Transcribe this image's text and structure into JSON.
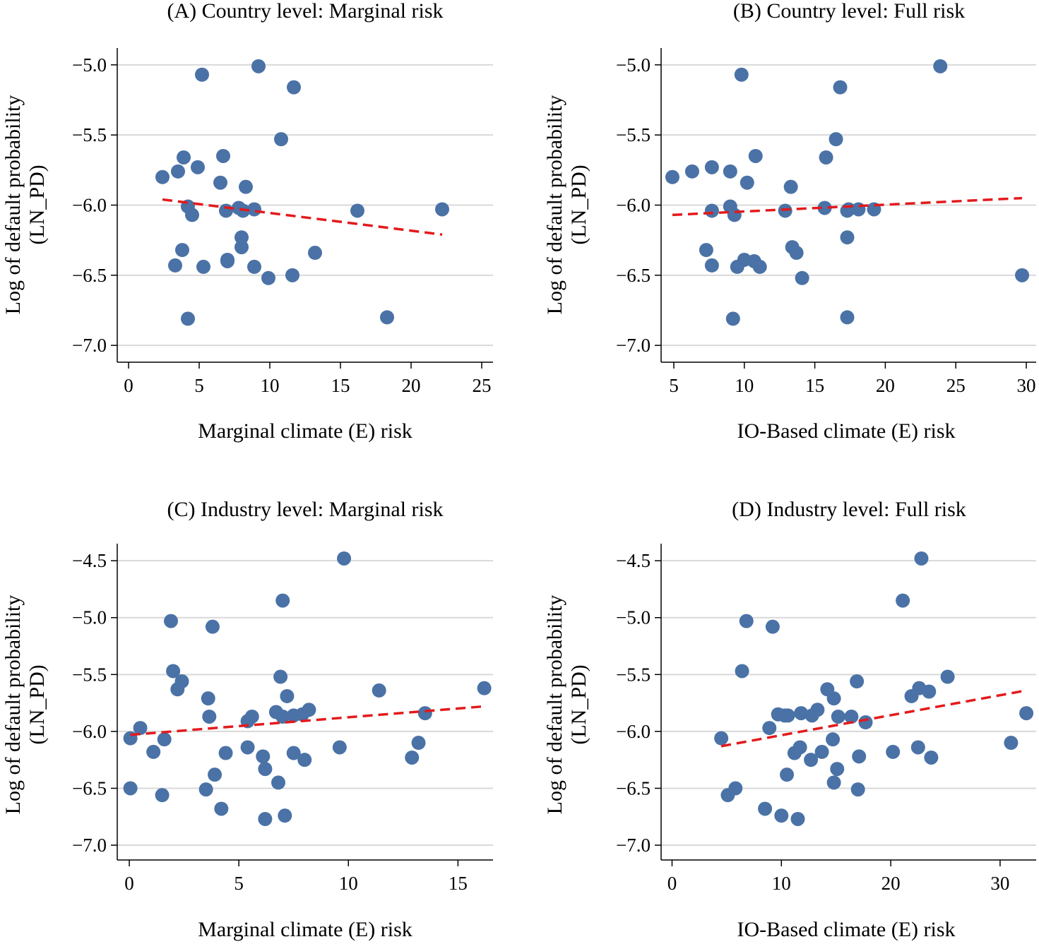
{
  "chart_data": [
    {
      "type": "scatter",
      "title": "(A) Country level: Marginal risk",
      "xlabel": "Marginal climate (E) risk",
      "ylabel": [
        "Log of default probability",
        "(LN_PD)"
      ],
      "xlim": [
        -0.8,
        25.8
      ],
      "ylim": [
        -7.12,
        -4.88
      ],
      "xticks": [
        0,
        5,
        10,
        15,
        20,
        25
      ],
      "xtick_labels": [
        "0",
        "5",
        "10",
        "15",
        "20",
        "25"
      ],
      "yticks": [
        -7.0,
        -6.5,
        -6.0,
        -5.5,
        -5.0
      ],
      "ytick_labels": [
        "−7.0",
        "−6.5",
        "−6.0",
        "−5.5",
        "−5.0"
      ],
      "grid": true,
      "points": [
        [
          2.4,
          -5.8
        ],
        [
          3.5,
          -5.76
        ],
        [
          3.9,
          -5.66
        ],
        [
          4.2,
          -6.01
        ],
        [
          4.5,
          -6.07
        ],
        [
          3.3,
          -6.43
        ],
        [
          3.8,
          -6.32
        ],
        [
          4.2,
          -6.81
        ],
        [
          4.9,
          -5.73
        ],
        [
          5.2,
          -5.07
        ],
        [
          5.3,
          -6.44
        ],
        [
          6.5,
          -5.84
        ],
        [
          6.7,
          -5.65
        ],
        [
          6.9,
          -6.04
        ],
        [
          7.0,
          -6.39
        ],
        [
          7.0,
          -6.4
        ],
        [
          7.8,
          -6.02
        ],
        [
          8.0,
          -6.23
        ],
        [
          8.0,
          -6.3
        ],
        [
          8.1,
          -6.04
        ],
        [
          8.3,
          -5.87
        ],
        [
          8.9,
          -6.03
        ],
        [
          8.9,
          -6.44
        ],
        [
          9.2,
          -5.01
        ],
        [
          9.9,
          -6.52
        ],
        [
          10.8,
          -5.53
        ],
        [
          11.6,
          -6.5
        ],
        [
          11.7,
          -5.16
        ],
        [
          13.2,
          -6.34
        ],
        [
          16.2,
          -6.04
        ],
        [
          18.3,
          -6.8
        ],
        [
          22.2,
          -6.03
        ]
      ],
      "fit": {
        "x": [
          2.4,
          22.2
        ],
        "y": [
          -5.96,
          -6.21
        ]
      }
    },
    {
      "type": "scatter",
      "title": "(B) Country level: Full risk",
      "xlabel": "IO-Based climate (E) risk",
      "ylabel": [
        "Log of default probability",
        "(LN_PD)"
      ],
      "xlim": [
        4.1,
        30.7
      ],
      "ylim": [
        -7.12,
        -4.88
      ],
      "xticks": [
        5,
        10,
        15,
        20,
        25,
        30
      ],
      "xtick_labels": [
        "5",
        "10",
        "15",
        "20",
        "25",
        "30"
      ],
      "yticks": [
        -7.0,
        -6.5,
        -6.0,
        -5.5,
        -5.0
      ],
      "ytick_labels": [
        "−7.0",
        "−6.5",
        "−6.0",
        "−5.5",
        "−5.0"
      ],
      "grid": true,
      "points": [
        [
          4.9,
          -5.8
        ],
        [
          6.3,
          -5.76
        ],
        [
          7.3,
          -6.32
        ],
        [
          7.7,
          -5.73
        ],
        [
          7.7,
          -6.04
        ],
        [
          7.7,
          -6.43
        ],
        [
          9.0,
          -5.76
        ],
        [
          9.0,
          -6.01
        ],
        [
          9.3,
          -6.07
        ],
        [
          9.2,
          -6.81
        ],
        [
          9.5,
          -6.44
        ],
        [
          9.8,
          -5.07
        ],
        [
          10.0,
          -6.39
        ],
        [
          10.2,
          -5.84
        ],
        [
          10.7,
          -6.4
        ],
        [
          10.8,
          -5.65
        ],
        [
          11.1,
          -6.44
        ],
        [
          12.9,
          -6.04
        ],
        [
          13.3,
          -5.87
        ],
        [
          13.4,
          -6.3
        ],
        [
          13.7,
          -6.34
        ],
        [
          14.1,
          -6.52
        ],
        [
          15.7,
          -6.02
        ],
        [
          15.8,
          -5.66
        ],
        [
          16.5,
          -5.53
        ],
        [
          16.8,
          -5.16
        ],
        [
          17.3,
          -6.04
        ],
        [
          17.3,
          -6.23
        ],
        [
          17.3,
          -6.8
        ],
        [
          17.4,
          -6.03
        ],
        [
          18.1,
          -6.03
        ],
        [
          19.2,
          -6.03
        ],
        [
          23.9,
          -5.01
        ],
        [
          29.7,
          -6.5
        ]
      ],
      "fit": {
        "x": [
          4.9,
          29.7
        ],
        "y": [
          -6.07,
          -5.95
        ]
      }
    },
    {
      "type": "scatter",
      "title": "(C) Industry level: Marginal risk",
      "xlabel": "Marginal climate (E) risk",
      "ylabel": [
        "Log of default probability",
        "(LN_PD)"
      ],
      "xlim": [
        -0.55,
        16.6
      ],
      "ylim": [
        -7.13,
        -4.35
      ],
      "xticks": [
        0,
        5,
        10,
        15
      ],
      "xtick_labels": [
        "0",
        "5",
        "10",
        "15"
      ],
      "yticks": [
        -7.0,
        -6.5,
        -6.0,
        -5.5,
        -5.0,
        -4.5
      ],
      "ytick_labels": [
        "−7.0",
        "−6.5",
        "−6.0",
        "−5.5",
        "−5.0",
        "−4.5"
      ],
      "grid": true,
      "points": [
        [
          0.05,
          -6.06
        ],
        [
          0.05,
          -6.5
        ],
        [
          0.5,
          -5.97
        ],
        [
          1.1,
          -6.18
        ],
        [
          1.5,
          -6.56
        ],
        [
          1.6,
          -6.07
        ],
        [
          1.9,
          -5.03
        ],
        [
          2.0,
          -5.47
        ],
        [
          2.2,
          -5.63
        ],
        [
          2.4,
          -5.56
        ],
        [
          3.5,
          -6.51
        ],
        [
          3.6,
          -5.71
        ],
        [
          3.65,
          -5.87
        ],
        [
          3.8,
          -5.08
        ],
        [
          3.9,
          -6.38
        ],
        [
          4.2,
          -6.68
        ],
        [
          4.4,
          -6.19
        ],
        [
          5.4,
          -5.91
        ],
        [
          5.4,
          -6.14
        ],
        [
          5.6,
          -5.87
        ],
        [
          6.1,
          -6.22
        ],
        [
          6.2,
          -6.33
        ],
        [
          6.2,
          -6.77
        ],
        [
          6.7,
          -5.83
        ],
        [
          6.8,
          -6.45
        ],
        [
          6.9,
          -5.52
        ],
        [
          7.0,
          -4.85
        ],
        [
          7.0,
          -5.87
        ],
        [
          7.1,
          -6.74
        ],
        [
          7.2,
          -5.69
        ],
        [
          7.5,
          -6.19
        ],
        [
          7.5,
          -5.86
        ],
        [
          7.9,
          -5.85
        ],
        [
          8.0,
          -6.25
        ],
        [
          8.2,
          -5.81
        ],
        [
          9.6,
          -6.14
        ],
        [
          9.8,
          -4.48
        ],
        [
          11.4,
          -5.64
        ],
        [
          12.9,
          -6.23
        ],
        [
          13.2,
          -6.1
        ],
        [
          13.5,
          -5.84
        ],
        [
          16.2,
          -5.62
        ]
      ],
      "fit": {
        "x": [
          0.05,
          16.2
        ],
        "y": [
          -6.03,
          -5.78
        ]
      }
    },
    {
      "type": "scatter",
      "title": "(D) Industry level: Full risk",
      "xlabel": "IO-Based climate (E) risk",
      "ylabel": [
        "Log of default probability",
        "(LN_PD)"
      ],
      "xlim": [
        -1.0,
        33.3
      ],
      "ylim": [
        -7.13,
        -4.35
      ],
      "xticks": [
        0,
        10,
        20,
        30
      ],
      "xtick_labels": [
        "0",
        "10",
        "20",
        "30"
      ],
      "yticks": [
        -7.0,
        -6.5,
        -6.0,
        -5.5,
        -5.0,
        -4.5
      ],
      "ytick_labels": [
        "−7.0",
        "−6.5",
        "−6.0",
        "−5.5",
        "−5.0",
        "−4.5"
      ],
      "grid": true,
      "points": [
        [
          4.5,
          -6.06
        ],
        [
          5.1,
          -6.56
        ],
        [
          5.8,
          -6.5
        ],
        [
          6.4,
          -5.47
        ],
        [
          6.8,
          -5.03
        ],
        [
          8.5,
          -6.68
        ],
        [
          8.9,
          -5.97
        ],
        [
          9.2,
          -5.08
        ],
        [
          9.7,
          -5.85
        ],
        [
          10.0,
          -6.74
        ],
        [
          10.3,
          -5.86
        ],
        [
          10.5,
          -6.38
        ],
        [
          10.6,
          -5.86
        ],
        [
          11.2,
          -6.19
        ],
        [
          11.5,
          -6.77
        ],
        [
          11.7,
          -6.14
        ],
        [
          11.8,
          -5.84
        ],
        [
          12.7,
          -6.25
        ],
        [
          12.8,
          -5.86
        ],
        [
          13.3,
          -5.81
        ],
        [
          13.7,
          -6.18
        ],
        [
          14.2,
          -5.63
        ],
        [
          14.7,
          -6.07
        ],
        [
          14.8,
          -6.45
        ],
        [
          14.8,
          -5.71
        ],
        [
          15.1,
          -6.33
        ],
        [
          15.2,
          -5.87
        ],
        [
          16.4,
          -5.87
        ],
        [
          16.9,
          -5.56
        ],
        [
          17.0,
          -6.51
        ],
        [
          17.1,
          -6.22
        ],
        [
          17.7,
          -5.92
        ],
        [
          20.2,
          -6.18
        ],
        [
          21.1,
          -4.85
        ],
        [
          21.9,
          -5.69
        ],
        [
          22.5,
          -6.14
        ],
        [
          22.6,
          -5.62
        ],
        [
          22.8,
          -4.48
        ],
        [
          23.5,
          -5.65
        ],
        [
          23.7,
          -6.23
        ],
        [
          25.2,
          -5.52
        ],
        [
          31.0,
          -6.1
        ],
        [
          32.4,
          -5.84
        ]
      ],
      "fit": {
        "x": [
          4.5,
          32.4
        ],
        "y": [
          -6.13,
          -5.64
        ]
      }
    }
  ]
}
